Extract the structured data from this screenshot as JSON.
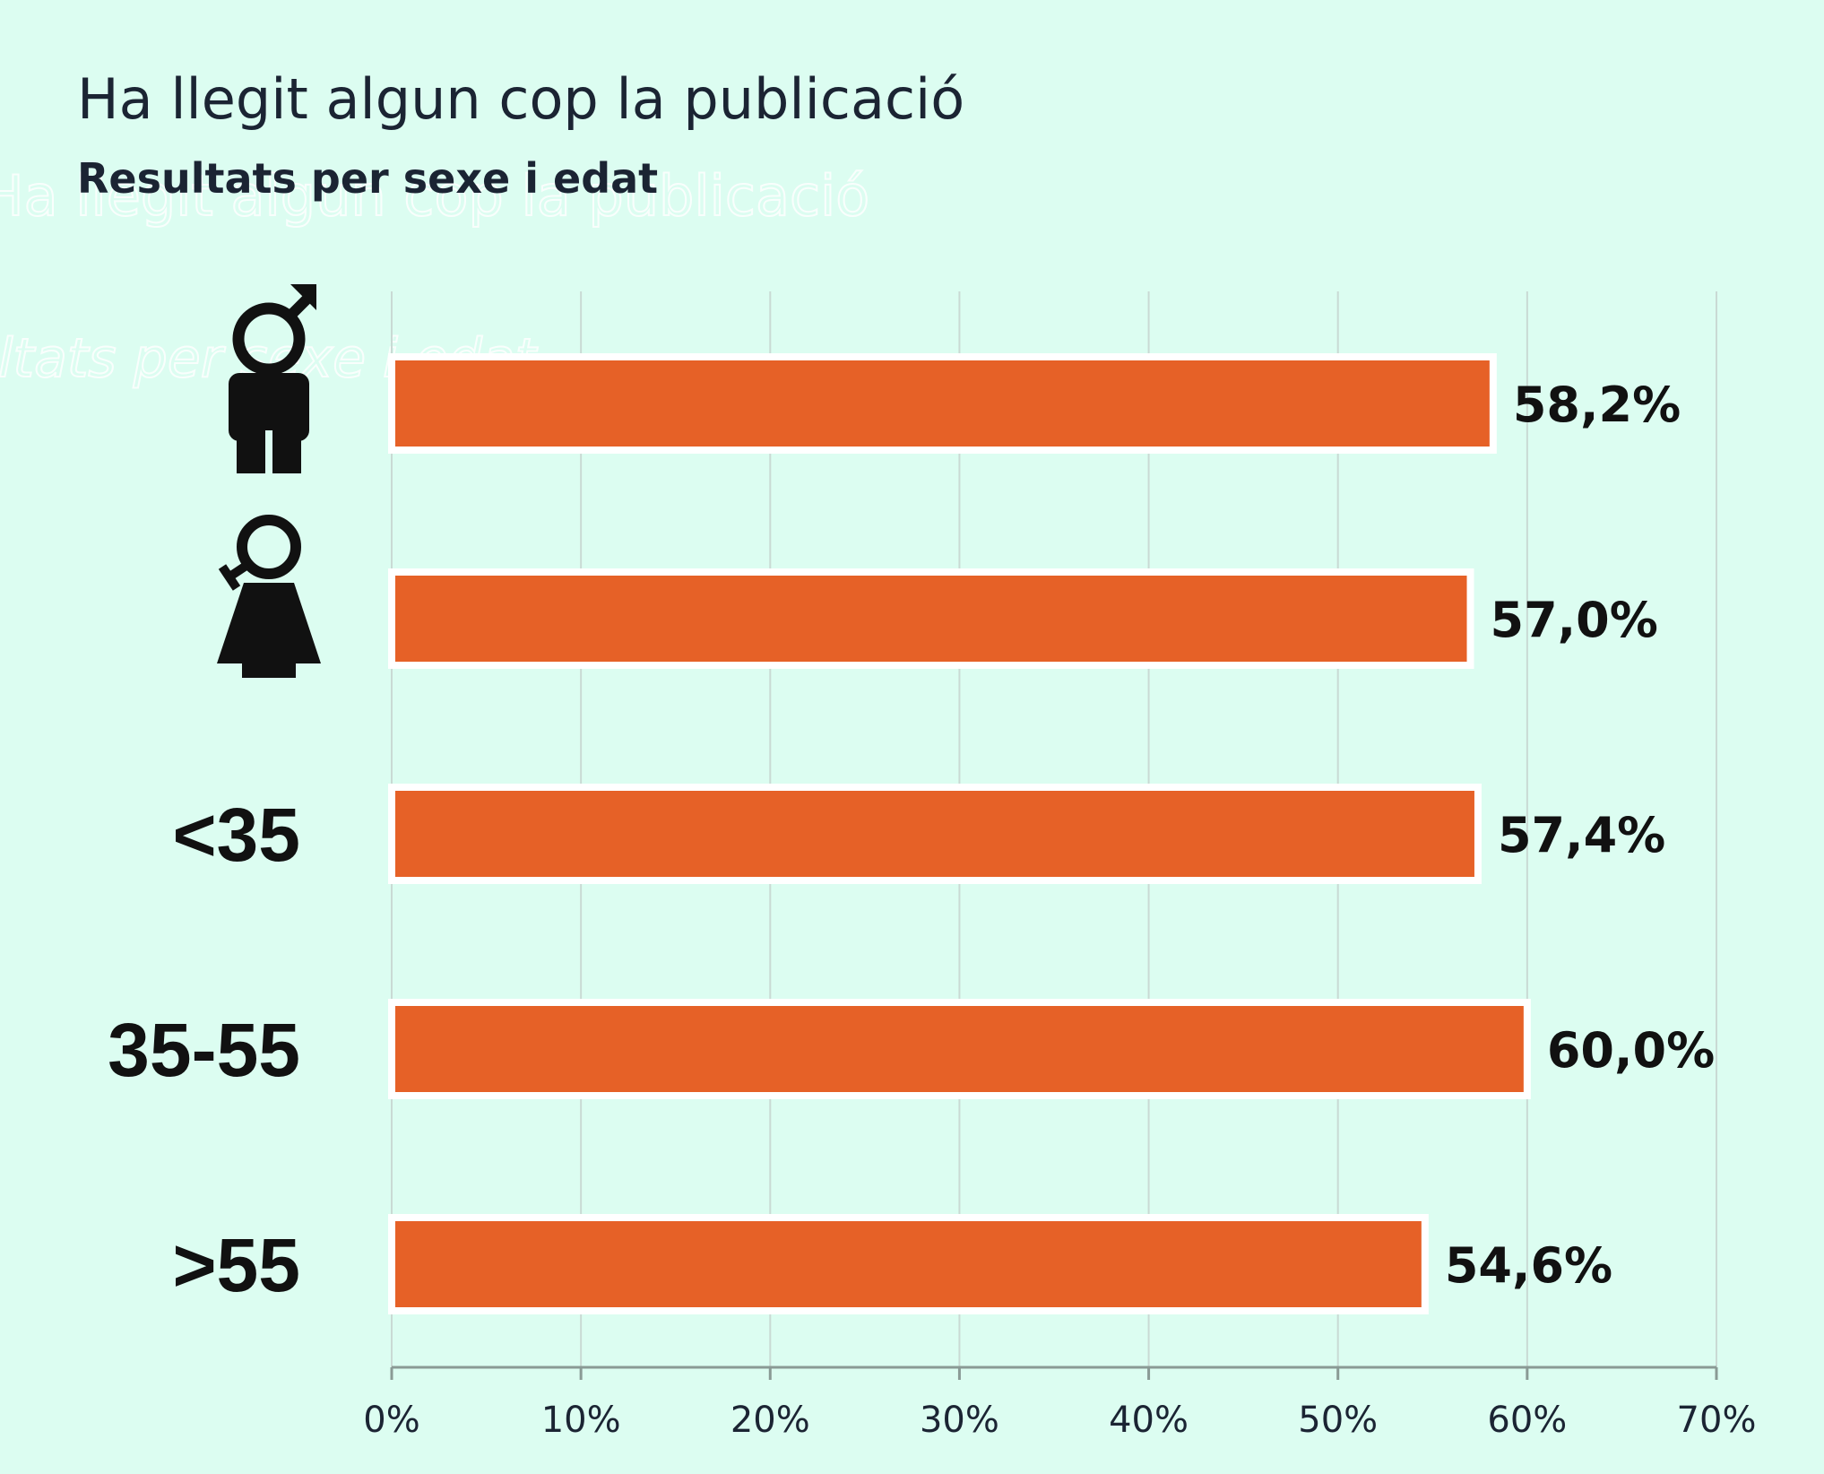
{
  "chart_data": {
    "type": "bar",
    "orientation": "horizontal",
    "title": "Ha llegit algun cop la publicació",
    "subtitle": "Resultats per sexe i edat",
    "categories": [
      "",
      "",
      "<35",
      "35-55",
      ">55"
    ],
    "category_icons": [
      "male-icon",
      "female-icon",
      null,
      null,
      null
    ],
    "values": [
      58.2,
      57.0,
      57.4,
      60.0,
      54.6
    ],
    "value_labels": [
      "58,2%",
      "57,0%",
      "57,4%",
      "60,0%",
      "54,6%"
    ],
    "xlim": [
      0,
      70
    ],
    "x_ticks": [
      "0%",
      "10%",
      "20%",
      "30%",
      "40%",
      "50%",
      "60%",
      "70%"
    ],
    "grid": true,
    "colors": {
      "bar": "#e66127",
      "bar_border": "#ffffff",
      "grid": "#c9dad4",
      "background": "#dcfdf1"
    }
  }
}
